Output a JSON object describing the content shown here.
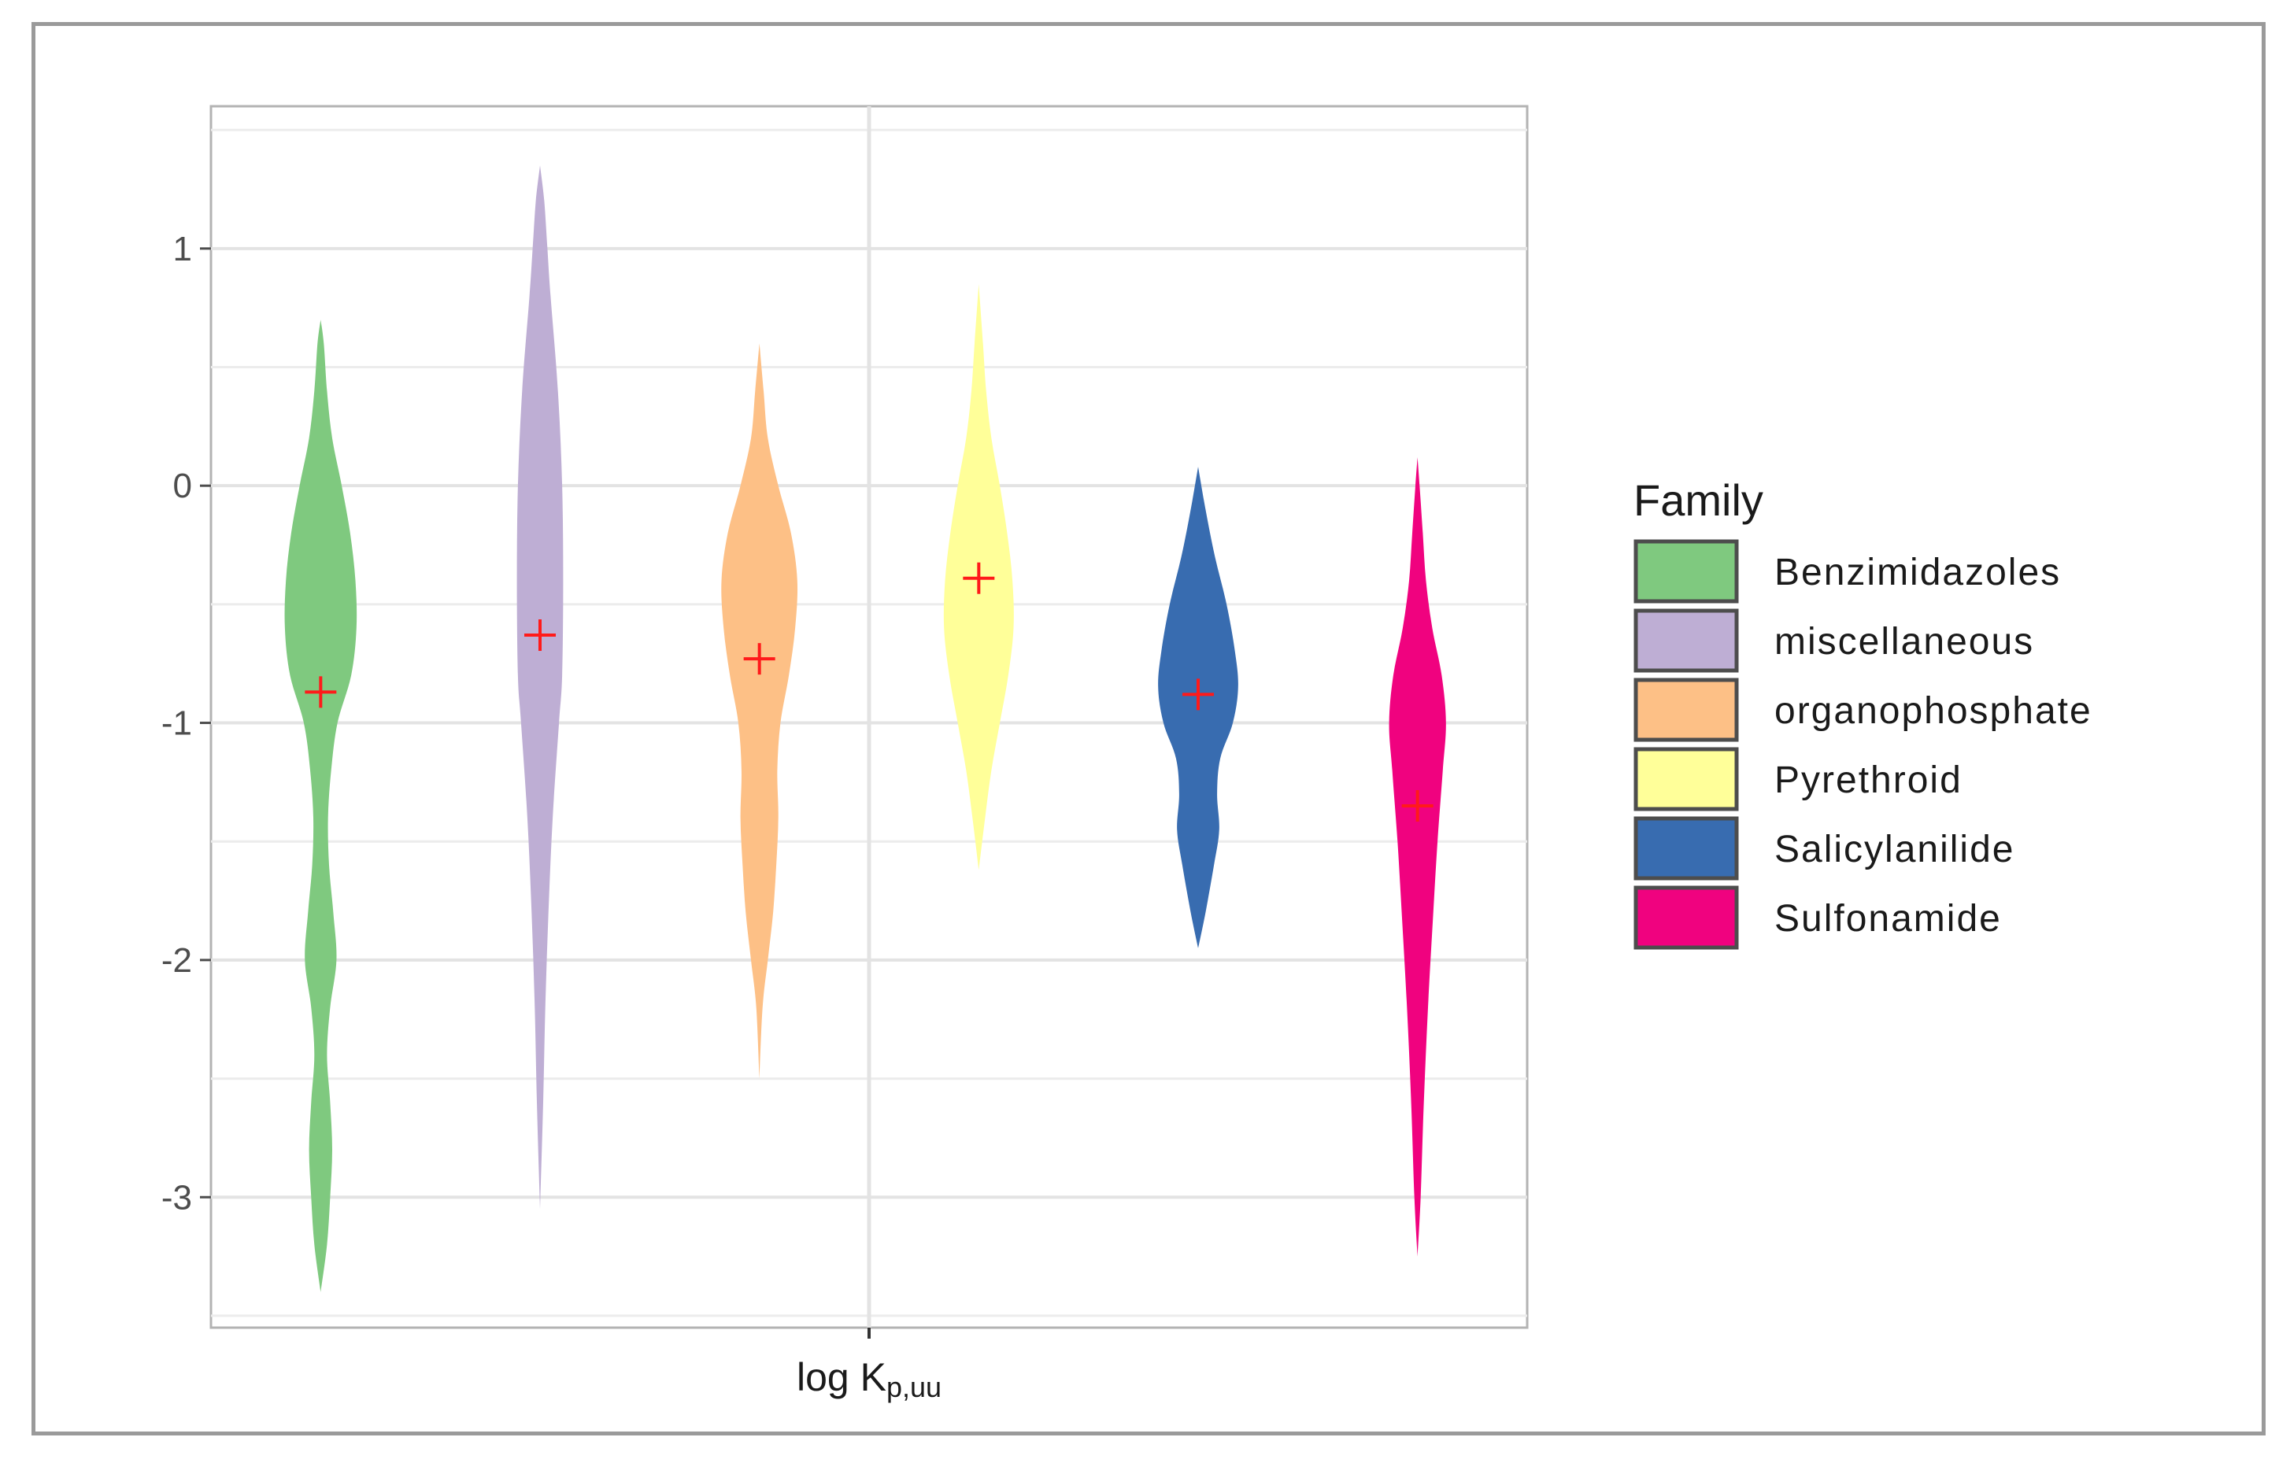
{
  "chart_data": {
    "type": "violin",
    "title": "",
    "xlabel": "log K",
    "xlabel_subscript": "p,uu",
    "ylabel": "",
    "ylim": [
      -3.55,
      1.6
    ],
    "y_ticks": [
      1,
      0,
      -1,
      -2,
      -3
    ],
    "y_tick_labels": [
      "1",
      "0",
      "-1",
      "-2",
      "-3"
    ],
    "grid": true,
    "legend": {
      "title": "Family",
      "position": "right",
      "entries": [
        "Benzimidazoles",
        "miscellaneous",
        "organophosphate",
        "Pyrethroid",
        "Salicylanilide",
        "Sulfonamide"
      ]
    },
    "series": [
      {
        "name": "Benzimidazoles",
        "color": "#7fc97f",
        "mean": -0.87,
        "range": [
          -3.4,
          0.7
        ],
        "profile": [
          [
            -3.4,
            0.0
          ],
          [
            -3.2,
            0.06
          ],
          [
            -3.0,
            0.09
          ],
          [
            -2.8,
            0.11
          ],
          [
            -2.6,
            0.09
          ],
          [
            -2.4,
            0.06
          ],
          [
            -2.2,
            0.09
          ],
          [
            -2.0,
            0.15
          ],
          [
            -1.8,
            0.12
          ],
          [
            -1.6,
            0.08
          ],
          [
            -1.4,
            0.07
          ],
          [
            -1.2,
            0.1
          ],
          [
            -1.0,
            0.16
          ],
          [
            -0.8,
            0.29
          ],
          [
            -0.6,
            0.34
          ],
          [
            -0.4,
            0.33
          ],
          [
            -0.2,
            0.28
          ],
          [
            0.0,
            0.2
          ],
          [
            0.2,
            0.11
          ],
          [
            0.4,
            0.06
          ],
          [
            0.6,
            0.03
          ],
          [
            0.7,
            0.0
          ]
        ]
      },
      {
        "name": "miscellaneous",
        "color": "#beaed4",
        "mean": -0.63,
        "range": [
          -3.05,
          1.35
        ],
        "profile": [
          [
            -3.05,
            0.0
          ],
          [
            -2.6,
            0.03
          ],
          [
            -2.2,
            0.05
          ],
          [
            -1.8,
            0.08
          ],
          [
            -1.4,
            0.12
          ],
          [
            -1.0,
            0.18
          ],
          [
            -0.8,
            0.21
          ],
          [
            -0.4,
            0.22
          ],
          [
            0.0,
            0.21
          ],
          [
            0.4,
            0.17
          ],
          [
            0.8,
            0.1
          ],
          [
            1.0,
            0.07
          ],
          [
            1.2,
            0.04
          ],
          [
            1.35,
            0.0
          ]
        ]
      },
      {
        "name": "organophosphate",
        "color": "#fdc086",
        "mean": -0.73,
        "range": [
          -2.5,
          0.6
        ],
        "profile": [
          [
            -2.5,
            0.0
          ],
          [
            -2.2,
            0.03
          ],
          [
            -2.0,
            0.08
          ],
          [
            -1.8,
            0.13
          ],
          [
            -1.6,
            0.16
          ],
          [
            -1.4,
            0.18
          ],
          [
            -1.2,
            0.17
          ],
          [
            -1.0,
            0.2
          ],
          [
            -0.8,
            0.28
          ],
          [
            -0.6,
            0.34
          ],
          [
            -0.4,
            0.36
          ],
          [
            -0.2,
            0.3
          ],
          [
            0.0,
            0.18
          ],
          [
            0.2,
            0.08
          ],
          [
            0.4,
            0.04
          ],
          [
            0.6,
            0.0
          ]
        ]
      },
      {
        "name": "Pyrethroid",
        "color": "#ffff99",
        "mean": -0.39,
        "range": [
          -1.62,
          0.85
        ],
        "profile": [
          [
            -1.62,
            0.0
          ],
          [
            -1.4,
            0.06
          ],
          [
            -1.2,
            0.12
          ],
          [
            -1.0,
            0.2
          ],
          [
            -0.8,
            0.28
          ],
          [
            -0.6,
            0.33
          ],
          [
            -0.4,
            0.32
          ],
          [
            -0.2,
            0.27
          ],
          [
            0.0,
            0.2
          ],
          [
            0.2,
            0.12
          ],
          [
            0.4,
            0.07
          ],
          [
            0.6,
            0.04
          ],
          [
            0.85,
            0.0
          ]
        ]
      },
      {
        "name": "Salicylanilide",
        "color": "#386cb0",
        "mean": -0.88,
        "range": [
          -1.95,
          0.08
        ],
        "profile": [
          [
            -1.95,
            0.0
          ],
          [
            -1.8,
            0.07
          ],
          [
            -1.6,
            0.15
          ],
          [
            -1.45,
            0.2
          ],
          [
            -1.3,
            0.18
          ],
          [
            -1.15,
            0.21
          ],
          [
            -1.0,
            0.33
          ],
          [
            -0.85,
            0.38
          ],
          [
            -0.7,
            0.35
          ],
          [
            -0.5,
            0.27
          ],
          [
            -0.3,
            0.16
          ],
          [
            -0.1,
            0.07
          ],
          [
            0.08,
            0.0
          ]
        ]
      },
      {
        "name": "Sulfonamide",
        "color": "#f0027f",
        "mean": -1.35,
        "range": [
          -3.25,
          0.12
        ],
        "profile": [
          [
            -3.25,
            0.0
          ],
          [
            -3.0,
            0.03
          ],
          [
            -2.6,
            0.06
          ],
          [
            -2.2,
            0.1
          ],
          [
            -1.8,
            0.15
          ],
          [
            -1.5,
            0.19
          ],
          [
            -1.2,
            0.24
          ],
          [
            -1.0,
            0.27
          ],
          [
            -0.8,
            0.23
          ],
          [
            -0.6,
            0.14
          ],
          [
            -0.4,
            0.08
          ],
          [
            -0.2,
            0.05
          ],
          [
            0.0,
            0.02
          ],
          [
            0.12,
            0.0
          ]
        ]
      }
    ]
  }
}
